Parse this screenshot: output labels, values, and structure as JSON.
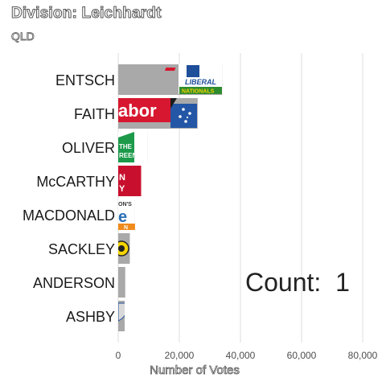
{
  "title": "Division: Leichhardt",
  "subtitle": "QLD",
  "count_label": "Count:  1",
  "logos": {
    "liberal": {
      "line1": "LIBERAL",
      "line2": "NATIONALS"
    },
    "labor": {
      "text": "abor"
    },
    "greens": {
      "line1": "THE",
      "line2": "REENS"
    },
    "katter": {
      "line1": "N",
      "line2": "Y"
    },
    "onenation": {
      "line1": "ON'S",
      "line2": "e",
      "line3": "N"
    }
  },
  "colors": {
    "bar": "#a9a9a9",
    "grid": "#dddddd",
    "liberal_blue": "#1f4e9a",
    "nationals_green": "#2e8b2e",
    "labor_red": "#d7172f",
    "greens_green": "#1c9a4a",
    "katter_red": "#c8102e",
    "onenation_orange": "#f08a1c",
    "onenation_blue": "#2a6fb5"
  },
  "chart_data": {
    "type": "bar",
    "orientation": "horizontal",
    "title": "Division: Leichhardt",
    "subtitle": "QLD",
    "xlabel": "Number of Votes",
    "ylabel": "",
    "xlim": [
      0,
      85000
    ],
    "xticks": [
      0,
      20000,
      40000,
      60000,
      80000
    ],
    "xtick_labels": [
      "0",
      "20,000",
      "40,000",
      "60,000",
      "80,000"
    ],
    "grid": true,
    "categories": [
      "ENTSCH",
      "FAITH",
      "OLIVER",
      "McCARTHY",
      "MACDONALD",
      "SACKLEY",
      "ANDERSON",
      "ASHBY"
    ],
    "values": [
      34000,
      26000,
      9500,
      7500,
      5500,
      3800,
      2300,
      2100
    ]
  }
}
